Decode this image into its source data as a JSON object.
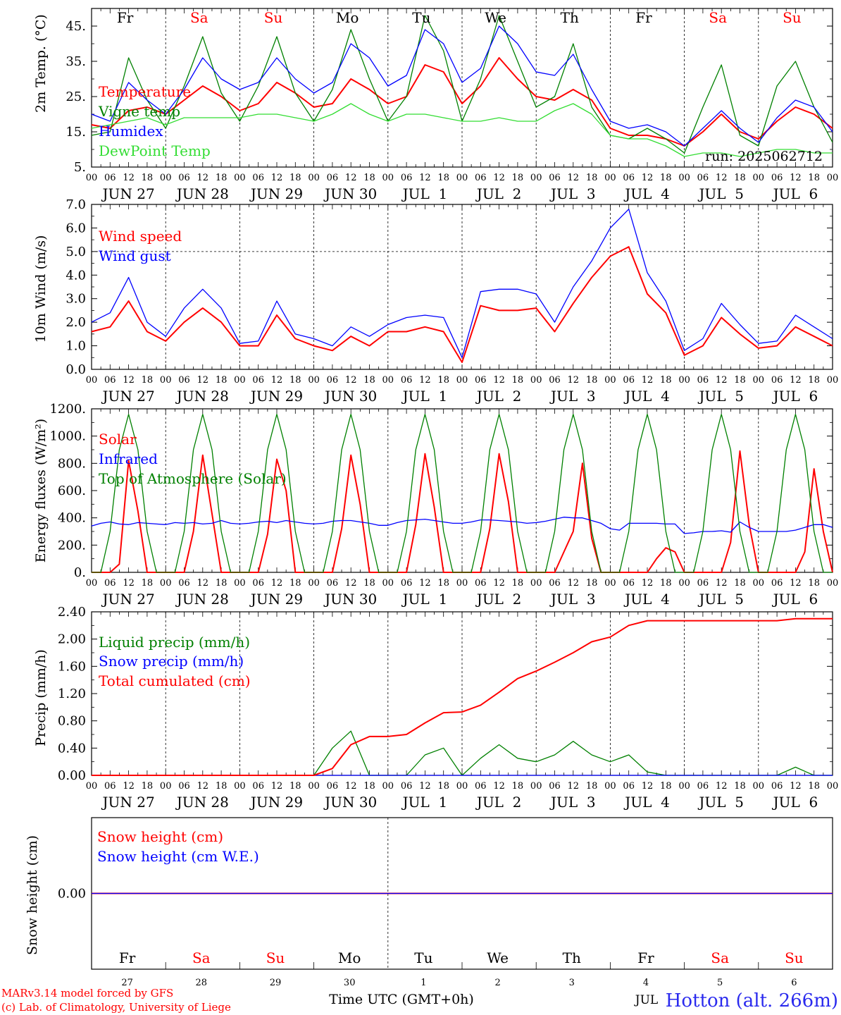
{
  "colors": {
    "red": "#ff0000",
    "green": "#008000",
    "blue": "#0000ff",
    "lightgreen": "#33dd33",
    "axis": "#000000"
  },
  "days": {
    "names": [
      "Fr",
      "Sa",
      "Su",
      "Mo",
      "Tu",
      "We",
      "Th",
      "Fr",
      "Sa",
      "Su"
    ],
    "weekend": [
      false,
      true,
      true,
      false,
      false,
      false,
      false,
      false,
      true,
      true
    ],
    "dates": [
      "JUN 27",
      "JUN 28",
      "JUN 29",
      "JUN 30",
      "JUL  1",
      "JUL  2",
      "JUL  3",
      "JUL  4",
      "JUL  5",
      "JUL  6"
    ],
    "hour_ticks": [
      "00",
      "06",
      "12",
      "18"
    ],
    "final_hour": "00",
    "day_numbers": [
      "27",
      "28",
      "29",
      "30",
      "1",
      "2",
      "3",
      "4",
      "5",
      "6"
    ]
  },
  "run_label": "run: 2025062712",
  "footer": {
    "line1": "MARv3.14 model forced by GFS",
    "line2": "(c) Lab. of Climatology, University of Liege",
    "xaxis_title": "Time UTC (GMT+0h)",
    "month_label": "JUL",
    "station": "Hotton (alt. 266m)"
  },
  "chart_data": [
    {
      "type": "line",
      "id": "temp",
      "ylabel": "2m Temp. (°C)",
      "yticks": [
        "5.",
        "15.",
        "25.",
        "35.",
        "45."
      ],
      "ylim": [
        5,
        50
      ],
      "hline": null,
      "x_hours": [
        0,
        6,
        12,
        18,
        24,
        30,
        36,
        42,
        48,
        54,
        60,
        66,
        72,
        78,
        84,
        90,
        96,
        102,
        108,
        114,
        120,
        126,
        132,
        138,
        144,
        150,
        156,
        162,
        168,
        174,
        180,
        186,
        192,
        198,
        204,
        210,
        216,
        222,
        228,
        234,
        240
      ],
      "series": [
        {
          "name": "Temperature",
          "color": "red",
          "values": [
            17,
            16,
            21,
            22,
            20,
            24,
            28,
            25,
            21,
            23,
            29,
            26,
            22,
            23,
            30,
            27,
            23,
            25,
            34,
            32,
            23,
            28,
            36,
            30,
            25,
            24,
            27,
            24,
            16,
            14,
            14,
            13,
            11,
            15,
            20,
            15,
            13,
            18,
            22,
            20,
            16
          ]
        },
        {
          "name": "Vigne temp",
          "color": "green",
          "values": [
            14,
            15,
            36,
            24,
            16,
            28,
            42,
            26,
            18,
            28,
            42,
            26,
            18,
            27,
            44,
            30,
            18,
            25,
            48,
            38,
            18,
            30,
            48,
            35,
            22,
            25,
            40,
            22,
            14,
            13,
            16,
            13,
            9,
            22,
            34,
            14,
            11,
            28,
            35,
            22,
            12
          ]
        },
        {
          "name": "Humidex",
          "color": "blue",
          "values": [
            20,
            18,
            29,
            24,
            20,
            27,
            36,
            30,
            27,
            29,
            36,
            30,
            26,
            29,
            40,
            36,
            28,
            31,
            44,
            40,
            29,
            33,
            45,
            40,
            32,
            31,
            37,
            27,
            18,
            16,
            17,
            15,
            11,
            16,
            21,
            16,
            12,
            19,
            24,
            22,
            15
          ]
        },
        {
          "name": "DewPoint Temp",
          "color": "lightgreen",
          "values": [
            16,
            17,
            18,
            19,
            17,
            19,
            19,
            19,
            19,
            20,
            20,
            19,
            18,
            20,
            23,
            20,
            18,
            20,
            20,
            19,
            18,
            18,
            19,
            18,
            18,
            21,
            23,
            20,
            14,
            13,
            13,
            11,
            8,
            9,
            9,
            8,
            9,
            10,
            10,
            9,
            9
          ]
        }
      ]
    },
    {
      "type": "line",
      "id": "wind",
      "ylabel": "10m Wind (m/s)",
      "yticks": [
        "0.0",
        "1.0",
        "2.0",
        "3.0",
        "4.0",
        "5.0",
        "6.0",
        "7.0"
      ],
      "ylim": [
        0,
        7
      ],
      "hline": 5.0,
      "x_hours": [
        0,
        6,
        12,
        18,
        24,
        30,
        36,
        42,
        48,
        54,
        60,
        66,
        72,
        78,
        84,
        90,
        96,
        102,
        108,
        114,
        120,
        126,
        132,
        138,
        144,
        150,
        156,
        162,
        168,
        174,
        180,
        186,
        192,
        198,
        204,
        210,
        216,
        222,
        228,
        234,
        240
      ],
      "series": [
        {
          "name": "Wind speed",
          "color": "red",
          "values": [
            1.6,
            1.8,
            2.9,
            1.6,
            1.2,
            2.0,
            2.6,
            2.0,
            1.0,
            1.0,
            2.3,
            1.3,
            1.0,
            0.8,
            1.4,
            1.0,
            1.6,
            1.6,
            1.8,
            1.6,
            0.3,
            2.7,
            2.5,
            2.5,
            2.6,
            1.6,
            2.8,
            3.9,
            4.8,
            5.2,
            3.2,
            2.4,
            0.6,
            1.0,
            2.2,
            1.5,
            0.9,
            1.0,
            1.8,
            1.4,
            1.0
          ]
        },
        {
          "name": "Wind gust",
          "color": "blue",
          "values": [
            2.0,
            2.4,
            3.9,
            2.0,
            1.4,
            2.6,
            3.4,
            2.6,
            1.1,
            1.2,
            2.9,
            1.5,
            1.3,
            1.0,
            1.8,
            1.4,
            1.9,
            2.2,
            2.3,
            2.2,
            0.5,
            3.3,
            3.4,
            3.4,
            3.2,
            2.0,
            3.5,
            4.6,
            6.0,
            6.8,
            4.1,
            2.9,
            0.8,
            1.3,
            2.8,
            1.9,
            1.1,
            1.2,
            2.3,
            1.8,
            1.3
          ]
        }
      ]
    },
    {
      "type": "line",
      "id": "energy",
      "ylabel": "Energy fluxes (W/m²)",
      "yticks": [
        "0.",
        "200.",
        "400.",
        "600.",
        "800.",
        "1000.",
        "1200."
      ],
      "ylim": [
        0,
        1200
      ],
      "hline": null,
      "x_hours": [
        0,
        3,
        6,
        9,
        12,
        15,
        18,
        21,
        24,
        27,
        30,
        33,
        36,
        39,
        42,
        45,
        48,
        51,
        54,
        57,
        60,
        63,
        66,
        69,
        72,
        75,
        78,
        81,
        84,
        87,
        90,
        93,
        96,
        99,
        102,
        105,
        108,
        111,
        114,
        117,
        120,
        123,
        126,
        129,
        132,
        135,
        138,
        141,
        144,
        147,
        150,
        153,
        156,
        159,
        162,
        165,
        168,
        171,
        174,
        177,
        180,
        183,
        186,
        189,
        192,
        195,
        198,
        201,
        204,
        207,
        210,
        213,
        216,
        219,
        222,
        225,
        228,
        231,
        234,
        237,
        240
      ],
      "series": [
        {
          "name": "Solar",
          "color": "red",
          "values": [
            0,
            0,
            0,
            60,
            820,
            450,
            0,
            0,
            0,
            0,
            0,
            300,
            860,
            430,
            0,
            0,
            0,
            0,
            0,
            280,
            830,
            600,
            0,
            0,
            0,
            0,
            0,
            320,
            860,
            500,
            0,
            0,
            0,
            0,
            0,
            350,
            870,
            480,
            0,
            0,
            0,
            0,
            0,
            320,
            870,
            520,
            0,
            0,
            0,
            0,
            0,
            150,
            300,
            800,
            250,
            0,
            0,
            0,
            0,
            0,
            0,
            100,
            180,
            150,
            0,
            0,
            0,
            0,
            0,
            220,
            890,
            350,
            0,
            0,
            0,
            0,
            0,
            150,
            760,
            300,
            0
          ]
        },
        {
          "name": "Infrared",
          "color": "blue",
          "values": [
            340,
            360,
            370,
            355,
            350,
            365,
            360,
            355,
            350,
            365,
            360,
            365,
            355,
            360,
            380,
            360,
            355,
            360,
            370,
            375,
            365,
            380,
            370,
            360,
            355,
            360,
            375,
            380,
            380,
            370,
            360,
            345,
            345,
            365,
            380,
            385,
            390,
            380,
            370,
            360,
            360,
            370,
            385,
            385,
            380,
            375,
            370,
            360,
            365,
            375,
            390,
            405,
            400,
            400,
            380,
            360,
            320,
            310,
            360,
            360,
            360,
            360,
            355,
            355,
            285,
            290,
            300,
            300,
            305,
            295,
            370,
            330,
            300,
            300,
            300,
            300,
            310,
            330,
            350,
            350,
            330
          ]
        },
        {
          "name": "Top of Atmosphere (Solar)",
          "color": "green",
          "values": [
            0,
            0,
            300,
            900,
            1160,
            900,
            300,
            0,
            0,
            0,
            300,
            900,
            1160,
            900,
            300,
            0,
            0,
            0,
            300,
            900,
            1160,
            900,
            300,
            0,
            0,
            0,
            300,
            900,
            1160,
            900,
            300,
            0,
            0,
            0,
            300,
            900,
            1160,
            900,
            300,
            0,
            0,
            0,
            300,
            900,
            1160,
            900,
            300,
            0,
            0,
            0,
            300,
            900,
            1160,
            900,
            300,
            0,
            0,
            0,
            300,
            900,
            1160,
            900,
            300,
            0,
            0,
            0,
            300,
            900,
            1160,
            900,
            300,
            0,
            0,
            0,
            300,
            900,
            1160,
            900,
            300,
            0,
            0
          ]
        }
      ]
    },
    {
      "type": "line",
      "id": "precip",
      "ylabel": "Precip (mm/h)",
      "yticks": [
        "0.00",
        "0.40",
        "0.80",
        "1.20",
        "1.60",
        "2.00",
        "2.40"
      ],
      "ylim": [
        0,
        2.4
      ],
      "hline": null,
      "x_hours": [
        0,
        6,
        12,
        18,
        24,
        30,
        36,
        42,
        48,
        54,
        60,
        66,
        72,
        78,
        84,
        90,
        96,
        102,
        108,
        114,
        120,
        126,
        132,
        138,
        144,
        150,
        156,
        162,
        168,
        174,
        180,
        186,
        192,
        198,
        204,
        210,
        216,
        222,
        228,
        234,
        240
      ],
      "series": [
        {
          "name": "Liquid precip (mm/h)",
          "color": "green",
          "values": [
            0,
            0,
            0,
            0,
            0,
            0,
            0,
            0,
            0,
            0,
            0,
            0,
            0,
            0.4,
            0.65,
            0,
            0,
            0,
            0.3,
            0.4,
            0,
            0.25,
            0.45,
            0.25,
            0.2,
            0.3,
            0.5,
            0.3,
            0.2,
            0.3,
            0.05,
            0,
            0,
            0,
            0,
            0,
            0,
            0,
            0.12,
            0,
            0
          ]
        },
        {
          "name": "Snow precip (mm/h)",
          "color": "blue",
          "values": [
            0,
            0,
            0,
            0,
            0,
            0,
            0,
            0,
            0,
            0,
            0,
            0,
            0,
            0,
            0,
            0,
            0,
            0,
            0,
            0,
            0,
            0,
            0,
            0,
            0,
            0,
            0,
            0,
            0,
            0,
            0,
            0,
            0,
            0,
            0,
            0,
            0,
            0,
            0,
            0,
            0
          ]
        },
        {
          "name": "Total cumulated (cm)",
          "color": "red",
          "values": [
            0,
            0,
            0,
            0,
            0,
            0,
            0,
            0,
            0,
            0,
            0,
            0,
            0,
            0.1,
            0.45,
            0.57,
            0.57,
            0.6,
            0.77,
            0.92,
            0.93,
            1.03,
            1.22,
            1.42,
            1.53,
            1.66,
            1.8,
            1.96,
            2.03,
            2.2,
            2.27,
            2.27,
            2.27,
            2.27,
            2.27,
            2.27,
            2.27,
            2.27,
            2.3,
            2.3,
            2.3
          ]
        }
      ]
    },
    {
      "type": "line",
      "id": "snow",
      "ylabel": "Snow height (cm)",
      "yticks": [
        "0.00"
      ],
      "ylim": [
        -1,
        1
      ],
      "hline": null,
      "x_hours": [
        0,
        240
      ],
      "series": [
        {
          "name": "Snow height (cm)",
          "color": "red",
          "values": [
            0,
            0
          ]
        },
        {
          "name": "Snow height (cm W.E.)",
          "color": "blue",
          "values": [
            0,
            0
          ]
        }
      ]
    }
  ]
}
